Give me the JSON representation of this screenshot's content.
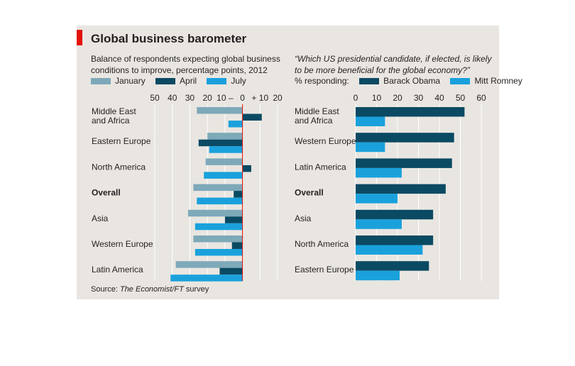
{
  "title": "Global business barometer",
  "source_prefix": "Source: ",
  "source_italic": "The Economist/FT",
  "source_suffix": " survey",
  "colors": {
    "january": "#7ea9b9",
    "april": "#0b4a63",
    "july": "#1aa1dc",
    "obama": "#0b4a63",
    "romney": "#1aa1dc",
    "zero_line": "#e3120b",
    "grid": "#ffffff",
    "panel": "#e9e6e1"
  },
  "chart_data": [
    {
      "type": "bar",
      "orientation": "horizontal",
      "title_line1": "Balance of respondents expecting global business",
      "title_line2": "conditions to improve, percentage points, 2012",
      "xlim": [
        -50,
        20
      ],
      "ticks": [
        "50",
        "40",
        "30",
        "20",
        "10 –",
        "0",
        "+ 10",
        "20"
      ],
      "tick_values": [
        -50,
        -40,
        -30,
        -20,
        -10,
        0,
        10,
        20
      ],
      "legend": [
        "January",
        "April",
        "July"
      ],
      "categories": [
        {
          "label": "Middle East\nand Africa",
          "bold": false
        },
        {
          "label": "Eastern Europe",
          "bold": false
        },
        {
          "label": "North America",
          "bold": false
        },
        {
          "label": "Overall",
          "bold": true
        },
        {
          "label": "Asia",
          "bold": false
        },
        {
          "label": "Western Europe",
          "bold": false
        },
        {
          "label": "Latin America",
          "bold": false
        }
      ],
      "series": [
        {
          "name": "January",
          "values": [
            -26,
            -20,
            -21,
            -28,
            -31,
            -28,
            -38
          ]
        },
        {
          "name": "April",
          "values": [
            11,
            -25,
            5,
            -5,
            -10,
            -6,
            -13
          ]
        },
        {
          "name": "July",
          "values": [
            -8,
            -19,
            -22,
            -26,
            -27,
            -27,
            -41
          ]
        }
      ]
    },
    {
      "type": "bar",
      "orientation": "horizontal",
      "title_line1": "“Which US presidential candidate, if elected, is likely",
      "title_line2": "to be more beneficial for the global economy?”",
      "legend_prefix": "% responding:",
      "xlim": [
        0,
        60
      ],
      "ticks": [
        "0",
        "10",
        "20",
        "30",
        "40",
        "50",
        "60"
      ],
      "tick_values": [
        0,
        10,
        20,
        30,
        40,
        50,
        60
      ],
      "legend": [
        "Barack Obama",
        "Mitt Romney"
      ],
      "categories": [
        {
          "label": "Middle East\nand Africa",
          "bold": false
        },
        {
          "label": "Western Europe",
          "bold": false
        },
        {
          "label": "Latin America",
          "bold": false
        },
        {
          "label": "Overall",
          "bold": true
        },
        {
          "label": "Asia",
          "bold": false
        },
        {
          "label": "North America",
          "bold": false
        },
        {
          "label": "Eastern Europe",
          "bold": false
        }
      ],
      "series": [
        {
          "name": "Barack Obama",
          "values": [
            52,
            47,
            46,
            43,
            37,
            37,
            35
          ]
        },
        {
          "name": "Mitt Romney",
          "values": [
            14,
            14,
            22,
            20,
            22,
            32,
            21
          ]
        }
      ]
    }
  ]
}
